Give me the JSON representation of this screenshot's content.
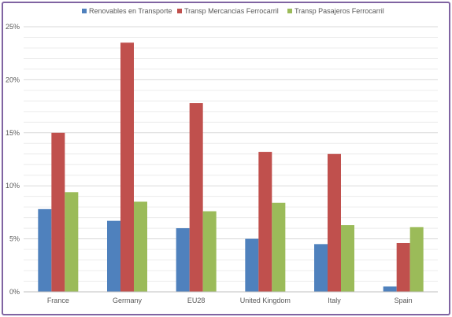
{
  "chart_data": {
    "type": "bar",
    "title": "",
    "xlabel": "",
    "ylabel": "",
    "categories": [
      "France",
      "Germany",
      "EU28",
      "United Kingdom",
      "Italy",
      "Spain"
    ],
    "series": [
      {
        "name": "Renovables en Transporte",
        "color": "#4f81bd",
        "values": [
          7.8,
          6.7,
          6.0,
          5.0,
          4.5,
          0.5
        ]
      },
      {
        "name": "Transp Mercancias Ferrocarril",
        "color": "#c0504d",
        "values": [
          15.0,
          23.5,
          17.8,
          13.2,
          13.0,
          4.6
        ]
      },
      {
        "name": "Transp Pasajeros Ferrocarril",
        "color": "#9bbb59",
        "values": [
          9.4,
          8.5,
          7.6,
          8.4,
          6.3,
          6.1
        ]
      }
    ],
    "ylim": [
      0,
      25
    ],
    "yticks": [
      0,
      5,
      10,
      15,
      20,
      25
    ],
    "ytick_labels": [
      "0%",
      "5%",
      "10%",
      "15%",
      "20%",
      "25%"
    ],
    "grid": true,
    "legend_position": "top"
  }
}
